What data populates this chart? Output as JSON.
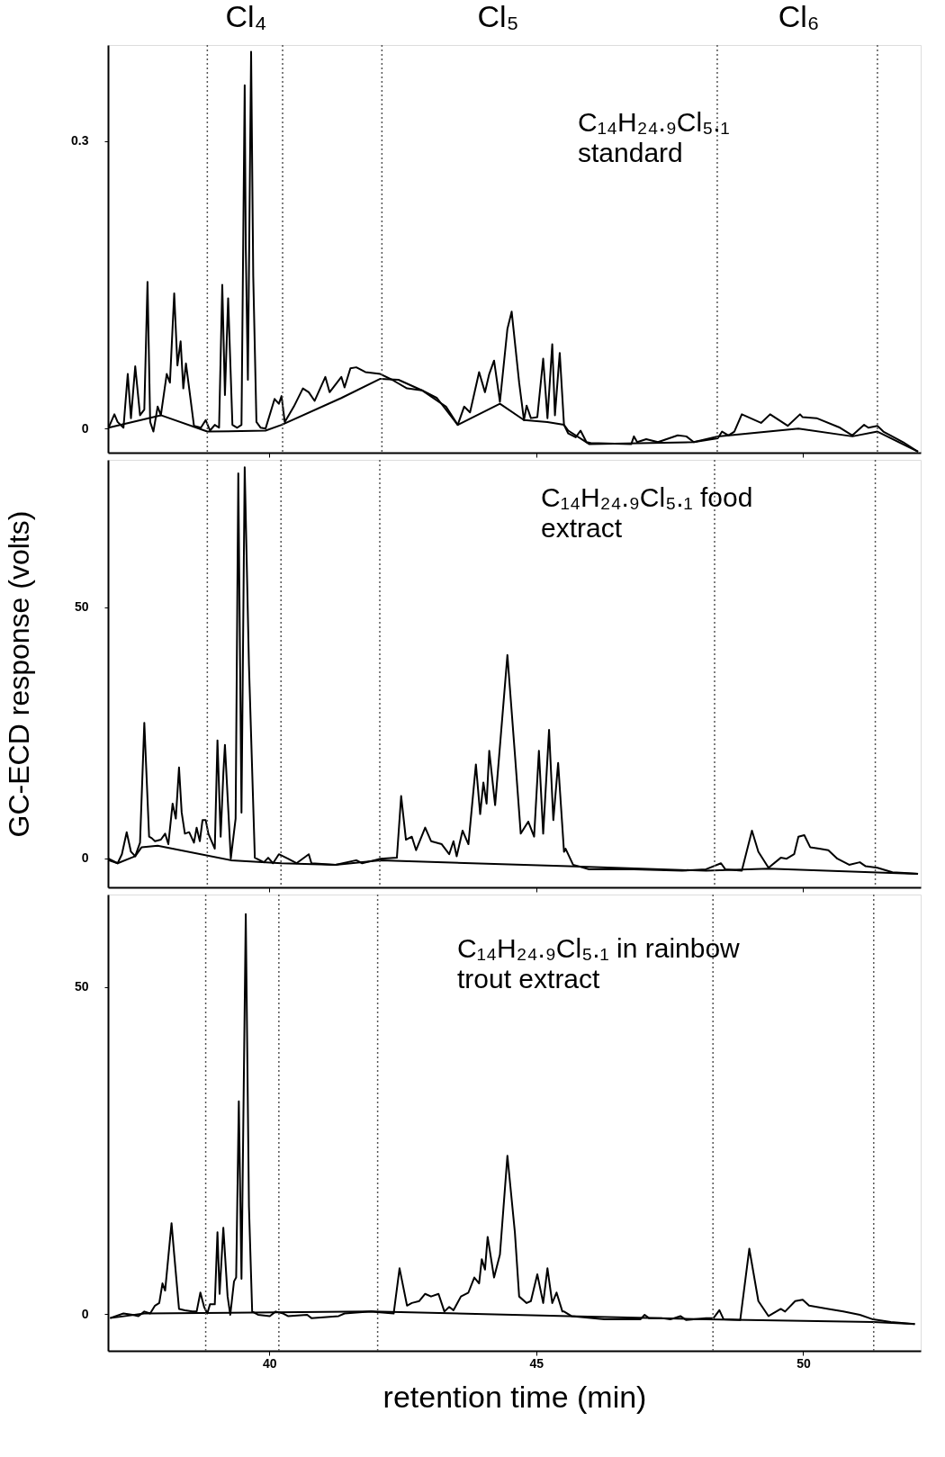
{
  "chart_data": [
    {
      "type": "line",
      "title": "C₁₄H₂₄.₉Cl₅.₁\nstandard",
      "xlim": [
        36.98,
        52.2
      ],
      "xticks": [
        40,
        45,
        50
      ],
      "ylim": [
        -0.025,
        0.4
      ],
      "yticks": [
        0,
        0.3
      ],
      "tick_labels": "y",
      "grid": false,
      "marker": "none",
      "line_style": "solid",
      "annotations": [
        "Cl₄",
        "Cl₅",
        "Cl₆"
      ],
      "ref_lines": [
        {
          "axis": "x",
          "value": 38.84,
          "line_style": "dotted",
          "color": "#555555"
        },
        {
          "axis": "x",
          "value": 40.25,
          "line_style": "dotted",
          "color": "#555555"
        },
        {
          "axis": "x",
          "value": 42.11,
          "line_style": "dotted",
          "color": "#555555"
        },
        {
          "axis": "x",
          "value": 48.39,
          "line_style": "dotted",
          "color": "#555555"
        },
        {
          "axis": "x",
          "value": 51.39,
          "line_style": "dotted",
          "color": "#555555"
        }
      ],
      "series": [
        {
          "color": "#000000",
          "x": [
            36.99,
            37.1,
            37.16,
            37.27,
            37.35,
            37.41,
            37.49,
            37.58,
            37.66,
            37.72,
            37.77,
            37.83,
            37.91,
            37.97,
            38.08,
            38.14,
            38.22,
            38.28,
            38.34,
            38.39,
            38.44,
            38.59,
            38.72,
            38.81,
            38.89,
            38.98,
            39.06,
            39.12,
            39.17,
            39.23,
            39.31,
            39.4,
            39.48,
            39.54,
            39.56,
            39.6,
            39.66,
            39.7,
            39.76,
            39.84,
            39.93,
            40.1,
            40.18,
            40.23,
            40.29,
            40.46,
            40.63,
            40.74,
            40.85,
            41.05,
            41.13,
            41.35,
            41.41,
            41.52,
            41.63,
            41.8,
            42.08,
            42.3,
            42.58,
            42.86,
            43.14,
            43.53,
            43.65,
            43.76,
            43.93,
            44.04,
            44.12,
            44.21,
            44.32,
            44.46,
            44.54,
            44.68,
            44.77,
            44.82,
            44.9,
            45.02,
            45.13,
            45.21,
            45.3,
            45.35,
            45.44,
            45.52,
            45.6,
            45.74,
            45.83,
            45.94,
            46.02,
            46.78,
            46.83,
            46.89,
            47.06,
            47.28,
            47.65,
            47.81,
            47.95,
            48.4,
            48.48,
            48.6,
            48.71,
            48.85,
            49.21,
            49.38,
            49.71,
            49.94,
            49.99,
            50.25,
            50.69,
            50.92,
            51.14,
            51.22,
            51.39,
            51.5,
            51.87,
            52.15
          ],
          "values": [
            0.001,
            0.015,
            0.007,
            0.001,
            0.057,
            0.011,
            0.065,
            0.014,
            0.02,
            0.153,
            0.007,
            -0.003,
            0.023,
            0.014,
            0.057,
            0.048,
            0.141,
            0.066,
            0.091,
            0.042,
            0.068,
            0.003,
            0.001,
            0.009,
            -0.002,
            0.004,
            0.001,
            0.15,
            0.035,
            0.136,
            0.004,
            0.001,
            0.004,
            0.358,
            0.19,
            0.051,
            0.393,
            0.159,
            0.007,
            0.001,
            0.0,
            0.031,
            0.026,
            0.034,
            0.007,
            0.023,
            0.042,
            0.038,
            0.029,
            0.054,
            0.038,
            0.054,
            0.043,
            0.063,
            0.064,
            0.059,
            0.057,
            0.051,
            0.042,
            0.04,
            0.032,
            0.004,
            0.023,
            0.017,
            0.059,
            0.038,
            0.057,
            0.071,
            0.028,
            0.104,
            0.122,
            0.048,
            0.009,
            0.024,
            0.011,
            0.012,
            0.073,
            0.011,
            0.088,
            0.014,
            0.079,
            0.004,
            -0.005,
            -0.009,
            -0.002,
            -0.014,
            -0.015,
            -0.016,
            -0.008,
            -0.014,
            -0.011,
            -0.014,
            -0.007,
            -0.008,
            -0.014,
            -0.01,
            -0.003,
            -0.007,
            -0.003,
            0.015,
            0.006,
            0.015,
            0.003,
            0.015,
            0.012,
            0.011,
            0.001,
            -0.007,
            0.004,
            0.001,
            0.003,
            -0.003,
            -0.014,
            -0.024
          ]
        },
        {
          "color": "#000000",
          "x": [
            36.99,
            37.97,
            38.84,
            39.93,
            40.23,
            41.35,
            42.08,
            42.42,
            42.86,
            43.31,
            43.53,
            44.32,
            44.77,
            45.21,
            45.52,
            45.6,
            45.99,
            47.95,
            48.4,
            49.91,
            50.92,
            51.39,
            52.15
          ],
          "values": [
            0.001,
            0.014,
            -0.003,
            -0.002,
            0.004,
            0.032,
            0.052,
            0.051,
            0.04,
            0.023,
            0.004,
            0.026,
            0.009,
            0.007,
            0.004,
            -0.002,
            -0.016,
            -0.014,
            -0.008,
            0.0,
            -0.008,
            -0.003,
            -0.024
          ]
        }
      ]
    },
    {
      "type": "line",
      "title": "C₁₄H₂₄.₉Cl₅.₁ food\nextract",
      "ylabel": "GC-ECD response (volts)",
      "xlim": [
        36.98,
        52.2
      ],
      "xticks": [
        40,
        45,
        50
      ],
      "ylim": [
        -5.8,
        79.4
      ],
      "yticks": [
        0,
        50
      ],
      "tick_labels": "y",
      "grid": false,
      "marker": "none",
      "line_style": "solid",
      "ref_lines": [
        {
          "axis": "x",
          "value": 38.84,
          "line_style": "dotted",
          "color": "#555555"
        },
        {
          "axis": "x",
          "value": 40.22,
          "line_style": "dotted",
          "color": "#555555"
        },
        {
          "axis": "x",
          "value": 42.07,
          "line_style": "dotted",
          "color": "#555555"
        },
        {
          "axis": "x",
          "value": 48.34,
          "line_style": "dotted",
          "color": "#555555"
        },
        {
          "axis": "x",
          "value": 51.35,
          "line_style": "dotted",
          "color": "#555555"
        }
      ],
      "series": [
        {
          "color": "#000000",
          "x": [
            36.99,
            37.16,
            37.24,
            37.33,
            37.41,
            37.49,
            37.58,
            37.66,
            37.75,
            37.8,
            37.86,
            37.97,
            38.05,
            38.11,
            38.19,
            38.25,
            38.31,
            38.36,
            38.42,
            38.5,
            38.59,
            38.64,
            38.7,
            38.75,
            38.81,
            38.86,
            38.98,
            39.03,
            39.09,
            39.14,
            39.17,
            39.28,
            39.37,
            39.42,
            39.48,
            39.54,
            39.62,
            39.73,
            39.9,
            39.98,
            40.07,
            40.18,
            40.35,
            40.51,
            40.74,
            40.79,
            41.24,
            41.63,
            41.74,
            41.97,
            42.08,
            42.39,
            42.47,
            42.56,
            42.67,
            42.75,
            42.92,
            43.03,
            43.23,
            43.37,
            43.45,
            43.51,
            43.62,
            43.73,
            43.87,
            43.95,
            44.01,
            44.07,
            44.12,
            44.23,
            44.46,
            44.6,
            44.71,
            44.85,
            44.96,
            45.05,
            45.13,
            45.24,
            45.32,
            45.41,
            45.52,
            45.55,
            45.69,
            45.99,
            46.83,
            47.73,
            48.18,
            48.46,
            48.54,
            48.85,
            49.04,
            49.16,
            49.35,
            49.58,
            49.69,
            49.83,
            49.91,
            50.02,
            50.13,
            50.3,
            50.47,
            50.64,
            50.86,
            51.06,
            51.17,
            51.39,
            51.67,
            52.15
          ],
          "values": [
            -0.1,
            -1.0,
            0.8,
            5.2,
            1.3,
            0.4,
            3.1,
            27.0,
            4.3,
            4.0,
            3.4,
            3.7,
            4.9,
            2.8,
            10.9,
            7.9,
            18.1,
            9.1,
            4.9,
            5.2,
            3.1,
            6.1,
            3.4,
            7.6,
            7.6,
            4.9,
            1.9,
            23.5,
            4.3,
            16.9,
            22.6,
            -0.1,
            7.9,
            76.7,
            9.1,
            77.9,
            38.4,
            0.1,
            -0.8,
            0.1,
            -1.0,
            0.8,
            -0.1,
            -1.0,
            0.8,
            -1.0,
            -1.3,
            -0.4,
            -1.0,
            -0.4,
            -0.1,
            0.1,
            12.4,
            3.7,
            4.3,
            1.6,
            6.1,
            3.4,
            2.8,
            0.8,
            3.4,
            0.4,
            5.5,
            2.8,
            18.7,
            8.8,
            15.1,
            10.9,
            21.4,
            10.6,
            40.5,
            20.8,
            4.9,
            7.3,
            4.3,
            21.4,
            4.9,
            25.6,
            7.6,
            19.0,
            1.3,
            1.9,
            -1.3,
            -2.2,
            -2.2,
            -2.5,
            -2.2,
            -1.0,
            -2.2,
            -2.5,
            5.5,
            1.3,
            -1.9,
            0.1,
            -0.1,
            0.8,
            4.3,
            4.6,
            2.2,
            1.9,
            1.6,
            -0.1,
            -1.3,
            -0.8,
            -1.6,
            -1.9,
            -2.8,
            -3.1
          ]
        },
        {
          "color": "#000000",
          "x": [
            36.99,
            37.16,
            37.49,
            37.61,
            37.91,
            39.28,
            40.23,
            41.24,
            42.08,
            45.6,
            48.18,
            49.35,
            52.15
          ],
          "values": [
            -0.4,
            -1.0,
            0.4,
            2.2,
            2.5,
            -0.4,
            -1.0,
            -1.3,
            -0.4,
            -1.6,
            -2.5,
            -2.1,
            -3.1
          ]
        }
      ]
    },
    {
      "type": "line",
      "title": "C₁₄H₂₄.₉Cl₅.₁ in rainbow\ntrout extract",
      "xlabel": "retention time (min)",
      "xlim": [
        36.98,
        52.2
      ],
      "xticks": [
        40,
        45,
        50
      ],
      "ylim": [
        -5.6,
        64.1
      ],
      "yticks": [
        0,
        50
      ],
      "grid": false,
      "marker": "none",
      "line_style": "solid",
      "ref_lines": [
        {
          "axis": "x",
          "value": 38.81,
          "line_style": "dotted",
          "color": "#555555"
        },
        {
          "axis": "x",
          "value": 40.18,
          "line_style": "dotted",
          "color": "#555555"
        },
        {
          "axis": "x",
          "value": 42.03,
          "line_style": "dotted",
          "color": "#555555"
        },
        {
          "axis": "x",
          "value": 48.31,
          "line_style": "dotted",
          "color": "#555555"
        },
        {
          "axis": "x",
          "value": 51.32,
          "line_style": "dotted",
          "color": "#555555"
        }
      ],
      "series": [
        {
          "color": "#000000",
          "x": [
            37.02,
            37.27,
            37.44,
            37.55,
            37.66,
            37.77,
            37.86,
            37.94,
            38.0,
            38.05,
            38.17,
            38.22,
            38.31,
            38.42,
            38.56,
            38.64,
            38.71,
            38.78,
            38.84,
            38.89,
            38.98,
            39.03,
            39.07,
            39.14,
            39.22,
            39.27,
            39.34,
            39.38,
            39.43,
            39.48,
            39.56,
            39.62,
            39.68,
            39.79,
            40.01,
            40.12,
            40.26,
            40.35,
            40.71,
            40.79,
            41.3,
            41.41,
            41.91,
            42.02,
            42.33,
            42.44,
            42.58,
            42.67,
            42.81,
            42.92,
            43.03,
            43.17,
            43.28,
            43.37,
            43.45,
            43.59,
            43.73,
            43.84,
            43.93,
            43.98,
            44.04,
            44.09,
            44.21,
            44.32,
            44.46,
            44.6,
            44.68,
            44.82,
            44.9,
            45.02,
            45.13,
            45.21,
            45.3,
            45.38,
            45.49,
            45.52,
            45.66,
            46.28,
            46.95,
            47.03,
            47.11,
            47.34,
            47.51,
            47.7,
            47.81,
            48.18,
            48.32,
            48.43,
            48.51,
            48.82,
            48.99,
            49.16,
            49.35,
            49.58,
            49.66,
            49.85,
            49.99,
            50.11,
            50.47,
            50.75,
            51.06,
            51.31,
            51.64,
            52.09
          ],
          "values": [
            -0.6,
            0.1,
            -0.1,
            -0.3,
            0.4,
            0.1,
            1.3,
            1.7,
            4.7,
            3.6,
            13.9,
            9.1,
            0.8,
            0.6,
            0.4,
            0.4,
            3.3,
            1.1,
            0.1,
            1.5,
            1.5,
            12.5,
            3.1,
            13.2,
            2.7,
            -0.1,
            5.0,
            5.6,
            32.5,
            5.4,
            61.1,
            16.4,
            0.4,
            -0.1,
            -0.3,
            0.4,
            0.1,
            -0.3,
            -0.1,
            -0.6,
            -0.3,
            0.1,
            0.4,
            0.3,
            0.1,
            7.0,
            1.3,
            1.7,
            2.0,
            3.1,
            2.7,
            3.1,
            0.4,
            1.1,
            0.6,
            2.7,
            3.3,
            5.6,
            4.7,
            8.4,
            6.8,
            11.8,
            5.6,
            9.1,
            24.2,
            12.5,
            2.7,
            1.7,
            2.0,
            6.1,
            1.7,
            7.0,
            1.7,
            3.3,
            0.4,
            0.4,
            -0.3,
            -0.8,
            -0.8,
            -0.1,
            -0.6,
            -0.6,
            -0.8,
            -0.3,
            -0.9,
            -0.6,
            -0.6,
            0.6,
            -0.8,
            -0.9,
            10.0,
            2.0,
            -0.3,
            0.8,
            0.4,
            2.0,
            2.2,
            1.3,
            0.8,
            0.4,
            -0.1,
            -0.8,
            -1.2,
            -1.5
          ]
        },
        {
          "color": "#000000",
          "x": [
            37.02,
            37.66,
            41.91,
            45.6,
            48.18,
            51.31,
            52.09
          ],
          "values": [
            -0.6,
            0.1,
            0.4,
            -0.3,
            -0.8,
            -1.2,
            -1.5
          ]
        }
      ]
    }
  ]
}
